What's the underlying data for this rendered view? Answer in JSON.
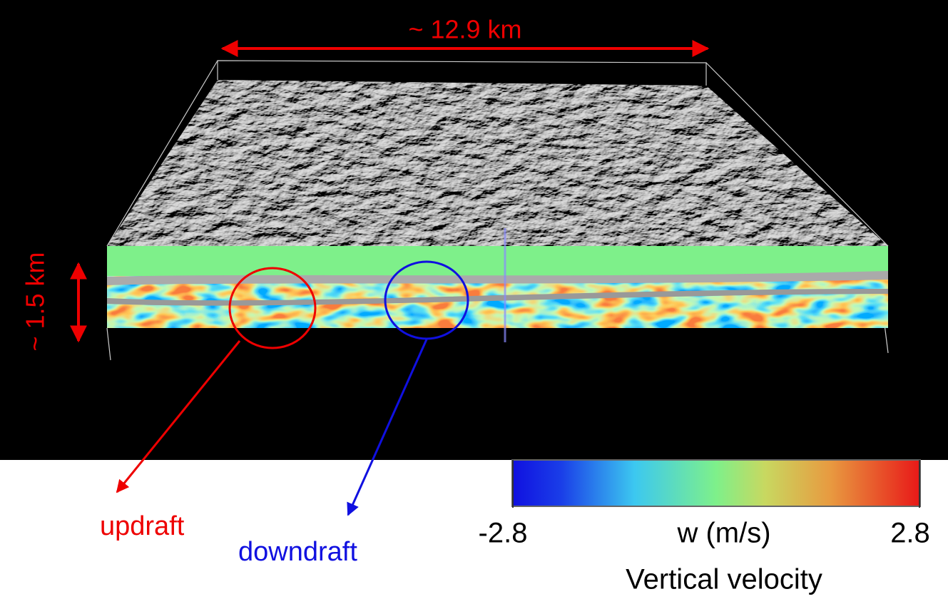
{
  "annotations": {
    "width_label": "~ 12.9 km",
    "height_label": "~ 1.5 km",
    "updraft": "updraft",
    "downdraft": "downdraft"
  },
  "colorbar": {
    "min": -2.8,
    "max": 2.8,
    "label": "w (m/s)",
    "title": "Vertical velocity"
  }
}
